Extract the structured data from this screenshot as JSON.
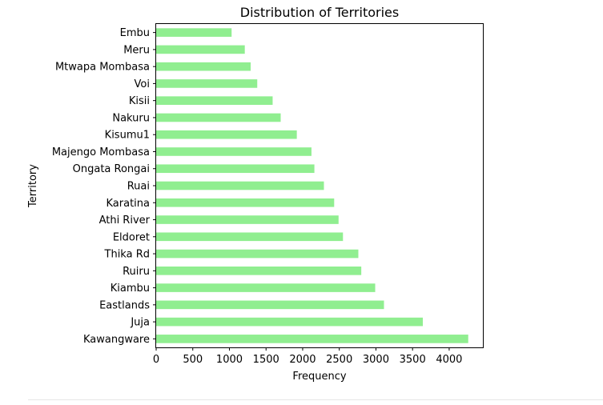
{
  "chart_data": {
    "type": "bar",
    "orientation": "horizontal",
    "title": "Distribution of Territories",
    "xlabel": "Frequency",
    "ylabel": "Territory",
    "categories": [
      "Kawangware",
      "Juja",
      "Eastlands",
      "Kiambu",
      "Ruiru",
      "Thika Rd",
      "Eldoret",
      "Athi River",
      "Karatina",
      "Ruai",
      "Ongata Rongai",
      "Majengo Mombasa",
      "Kisumu1",
      "Nakuru",
      "Kisii",
      "Voi",
      "Mtwapa Mombasa",
      "Meru",
      "Embu"
    ],
    "values": [
      4260,
      3640,
      3110,
      2990,
      2800,
      2760,
      2550,
      2490,
      2430,
      2290,
      2160,
      2120,
      1920,
      1700,
      1590,
      1380,
      1290,
      1210,
      1030
    ],
    "xlim": [
      0,
      4460
    ],
    "xticks": [
      0,
      500,
      1000,
      1500,
      2000,
      2500,
      3000,
      3500,
      4000
    ],
    "bar_color": "#90ee90",
    "grid": false,
    "legend": "none"
  }
}
